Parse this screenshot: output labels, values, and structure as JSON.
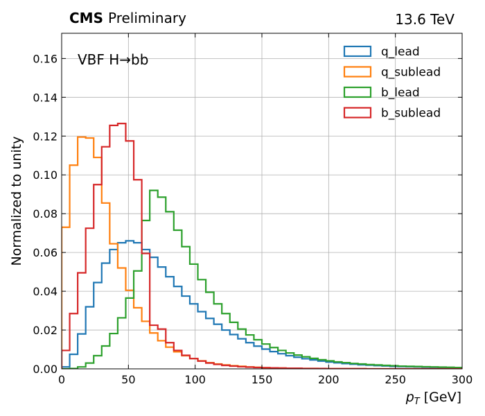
{
  "chart_data": {
    "type": "line",
    "style": "step-histogram",
    "experiment": "CMS",
    "status": "Preliminary",
    "energy": "13.6 TeV",
    "annotation": "VBF H→bb",
    "xlabel_italic": "p",
    "xlabel_sub": "T",
    "xlabel_unit": " [GeV]",
    "ylabel": "Normalized to unity",
    "xlim": [
      0,
      300
    ],
    "ylim": [
      0,
      0.173
    ],
    "x_ticks": [
      0,
      50,
      100,
      150,
      200,
      250,
      300
    ],
    "y_ticks": [
      0.0,
      0.02,
      0.04,
      0.06,
      0.08,
      0.1,
      0.12,
      0.14,
      0.16
    ],
    "grid": true,
    "legend_position": "top-right",
    "bin_width": 6,
    "bin_edges_start": 0,
    "series": [
      {
        "name": "q_lead",
        "color": "#1f77b4",
        "values": [
          0.001,
          0.0075,
          0.018,
          0.032,
          0.0445,
          0.0545,
          0.0615,
          0.065,
          0.066,
          0.065,
          0.0615,
          0.0575,
          0.0525,
          0.0475,
          0.0425,
          0.0375,
          0.0335,
          0.0295,
          0.026,
          0.023,
          0.02,
          0.0177,
          0.0155,
          0.0135,
          0.0117,
          0.0102,
          0.0089,
          0.0078,
          0.0068,
          0.006,
          0.0052,
          0.0046,
          0.004,
          0.0035,
          0.0031,
          0.0027,
          0.0024,
          0.0021,
          0.0019,
          0.0017,
          0.0015,
          0.0013,
          0.0012,
          0.0011,
          0.001,
          0.0009,
          0.0008,
          0.0007,
          0.0006,
          0.0006
        ]
      },
      {
        "name": "q_sublead",
        "color": "#ff7f0e",
        "values": [
          0.073,
          0.105,
          0.1195,
          0.119,
          0.109,
          0.0855,
          0.0645,
          0.052,
          0.0405,
          0.0315,
          0.0245,
          0.0185,
          0.0145,
          0.0112,
          0.0088,
          0.0068,
          0.0053,
          0.0041,
          0.0032,
          0.0025,
          0.002,
          0.0016,
          0.0013,
          0.001,
          0.0008,
          0.0006,
          0.0005,
          0.0004,
          0.0003,
          0.0003,
          0.0002,
          0.0002,
          0.0001,
          0.0001,
          0.0001,
          0.0001,
          0.0001,
          0.0001,
          0.0,
          0.0,
          0.0,
          0.0,
          0.0,
          0.0,
          0.0,
          0.0,
          0.0,
          0.0,
          0.0,
          0.0
        ]
      },
      {
        "name": "b_lead",
        "color": "#2ca02c",
        "values": [
          0.0,
          0.0002,
          0.001,
          0.003,
          0.0068,
          0.0118,
          0.0182,
          0.0263,
          0.0365,
          0.0505,
          0.0765,
          0.092,
          0.0885,
          0.081,
          0.0715,
          0.063,
          0.054,
          0.046,
          0.0395,
          0.0335,
          0.0285,
          0.024,
          0.0205,
          0.0175,
          0.015,
          0.0128,
          0.011,
          0.0095,
          0.0082,
          0.0071,
          0.0062,
          0.0054,
          0.0047,
          0.0041,
          0.0036,
          0.0032,
          0.0028,
          0.0025,
          0.0022,
          0.002,
          0.0018,
          0.0016,
          0.0014,
          0.0013,
          0.0012,
          0.0011,
          0.001,
          0.0009,
          0.0008,
          0.0007
        ]
      },
      {
        "name": "b_sublead",
        "color": "#d62728",
        "values": [
          0.0095,
          0.0285,
          0.0495,
          0.0725,
          0.095,
          0.1145,
          0.1255,
          0.1265,
          0.1175,
          0.0975,
          0.0595,
          0.0225,
          0.0205,
          0.0135,
          0.0095,
          0.007,
          0.0053,
          0.004,
          0.003,
          0.0023,
          0.0018,
          0.0014,
          0.0011,
          0.0009,
          0.0007,
          0.0006,
          0.0005,
          0.0004,
          0.0003,
          0.0003,
          0.0002,
          0.0002,
          0.0002,
          0.0001,
          0.0001,
          0.0001,
          0.0001,
          0.0001,
          0.0,
          0.0,
          0.0,
          0.0,
          0.0,
          0.0,
          0.0,
          0.0,
          0.0,
          0.0,
          0.0,
          0.0
        ]
      }
    ]
  }
}
